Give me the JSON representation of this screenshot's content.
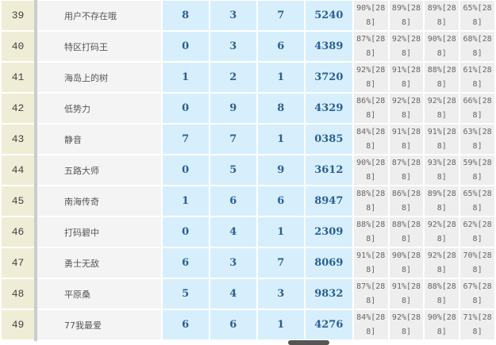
{
  "rows": [
    {
      "rank": "39",
      "name": "用户不存在哦",
      "a": "8",
      "b": "3",
      "c": "7",
      "code": "5240",
      "p": [
        "90%[288]",
        "89%[288]",
        "89%[288]",
        "65%[288]"
      ]
    },
    {
      "rank": "40",
      "name": "特区打码王",
      "a": "0",
      "b": "3",
      "c": "6",
      "code": "4389",
      "p": [
        "87%[288]",
        "92%[288]",
        "90%[288]",
        "68%[288]"
      ]
    },
    {
      "rank": "41",
      "name": "海岛上的树",
      "a": "1",
      "b": "2",
      "c": "1",
      "code": "3720",
      "p": [
        "92%[288]",
        "91%[288]",
        "88%[288]",
        "61%[288]"
      ]
    },
    {
      "rank": "42",
      "name": "低势力",
      "a": "0",
      "b": "9",
      "c": "8",
      "code": "4329",
      "p": [
        "86%[288]",
        "92%[288]",
        "92%[288]",
        "66%[288]"
      ]
    },
    {
      "rank": "43",
      "name": "静音",
      "a": "7",
      "b": "7",
      "c": "1",
      "code": "0385",
      "p": [
        "84%[288]",
        "91%[288]",
        "91%[288]",
        "63%[288]"
      ]
    },
    {
      "rank": "44",
      "name": "五路大师",
      "a": "0",
      "b": "5",
      "c": "9",
      "code": "3612",
      "p": [
        "90%[288]",
        "87%[288]",
        "93%[288]",
        "59%[288]"
      ]
    },
    {
      "rank": "45",
      "name": "南海传奇",
      "a": "1",
      "b": "6",
      "c": "6",
      "code": "8947",
      "p": [
        "88%[288]",
        "86%[288]",
        "89%[288]",
        "65%[288]"
      ]
    },
    {
      "rank": "46",
      "name": "打码碧中",
      "a": "0",
      "b": "4",
      "c": "1",
      "code": "2309",
      "p": [
        "88%[288]",
        "88%[288]",
        "92%[288]",
        "62%[288]"
      ]
    },
    {
      "rank": "47",
      "name": "勇士无敌",
      "a": "6",
      "b": "3",
      "c": "7",
      "code": "8069",
      "p": [
        "91%[288]",
        "90%[288]",
        "92%[288]",
        "70%[288]"
      ]
    },
    {
      "rank": "48",
      "name": "平原桑",
      "a": "5",
      "b": "4",
      "c": "3",
      "code": "9832",
      "p": [
        "87%[288]",
        "91%[288]",
        "88%[288]",
        "67%[288]"
      ]
    },
    {
      "rank": "49",
      "name": "77我最爱",
      "a": "6",
      "b": "6",
      "c": "1",
      "code": "4276",
      "p": [
        "84%[288]",
        "92%[288]",
        "90%[288]",
        "71%[288]"
      ]
    }
  ]
}
